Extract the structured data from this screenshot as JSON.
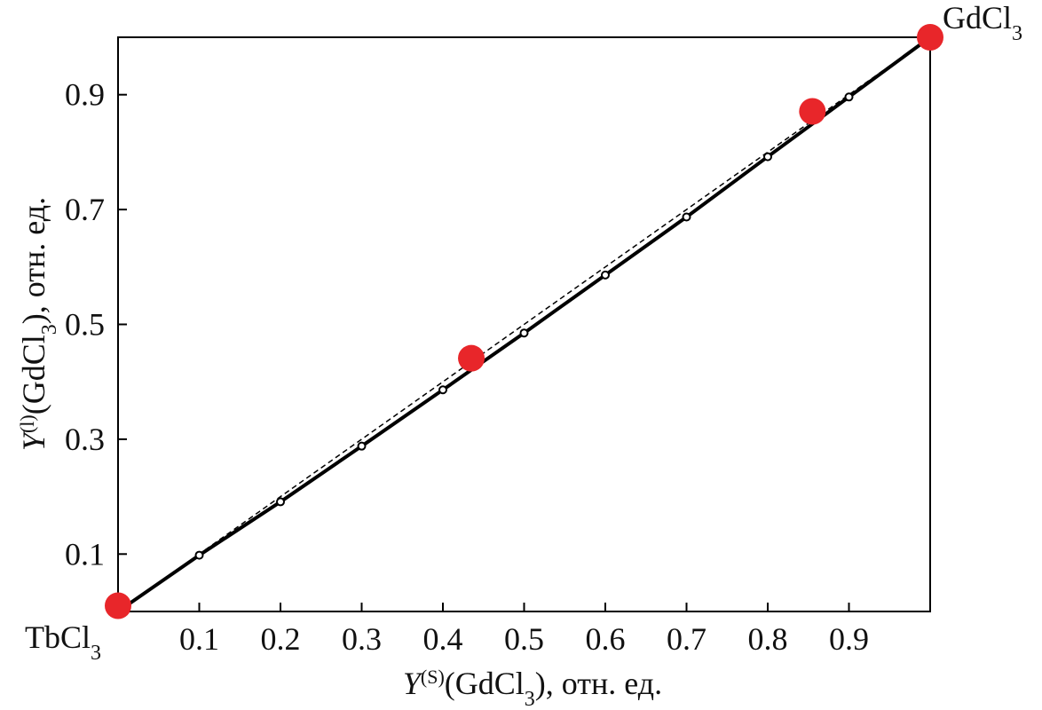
{
  "chart_data": {
    "type": "line",
    "xlabel": [
      {
        "text": "Y",
        "style": "italic"
      },
      {
        "text": "(S)",
        "style": "sup"
      },
      {
        "text": "(GdCl"
      },
      {
        "text": "3",
        "style": "sub"
      },
      {
        "text": "), отн. ед."
      }
    ],
    "ylabel": [
      {
        "text": "Y",
        "style": "italic"
      },
      {
        "text": "(l)",
        "style": "sup"
      },
      {
        "text": "(GdCl"
      },
      {
        "text": "3",
        "style": "sub"
      },
      {
        "text": "), отн. ед."
      }
    ],
    "annotations": [
      [
        {
          "text": "TbCl"
        },
        {
          "text": "3",
          "style": "sub"
        }
      ],
      [
        {
          "text": "GdCl"
        },
        {
          "text": "3",
          "style": "sub"
        }
      ]
    ],
    "xlim": [
      0,
      1
    ],
    "ylim": [
      0,
      1
    ],
    "xticks": [
      0.1,
      0.2,
      0.3,
      0.4,
      0.5,
      0.6,
      0.7,
      0.8,
      0.9
    ],
    "yticks": [
      0.1,
      0.3,
      0.5,
      0.7,
      0.9
    ],
    "series": [
      {
        "color": "#000000",
        "dash": true,
        "x": [
          0,
          1
        ],
        "values": [
          0,
          1
        ]
      },
      {
        "color": "#000000",
        "marker": "open-circle",
        "x": [
          0,
          0.1,
          0.2,
          0.3,
          0.4,
          0.5,
          0.6,
          0.7,
          0.8,
          0.9,
          1
        ],
        "values": [
          0,
          0.098,
          0.191,
          0.288,
          0.386,
          0.485,
          0.586,
          0.687,
          0.792,
          0.896,
          1
        ]
      },
      {
        "color": "#e8262a",
        "marker": "dot",
        "x": [
          0,
          0.435,
          0.855,
          1
        ],
        "values": [
          0.01,
          0.441,
          0.871,
          1
        ]
      }
    ]
  }
}
